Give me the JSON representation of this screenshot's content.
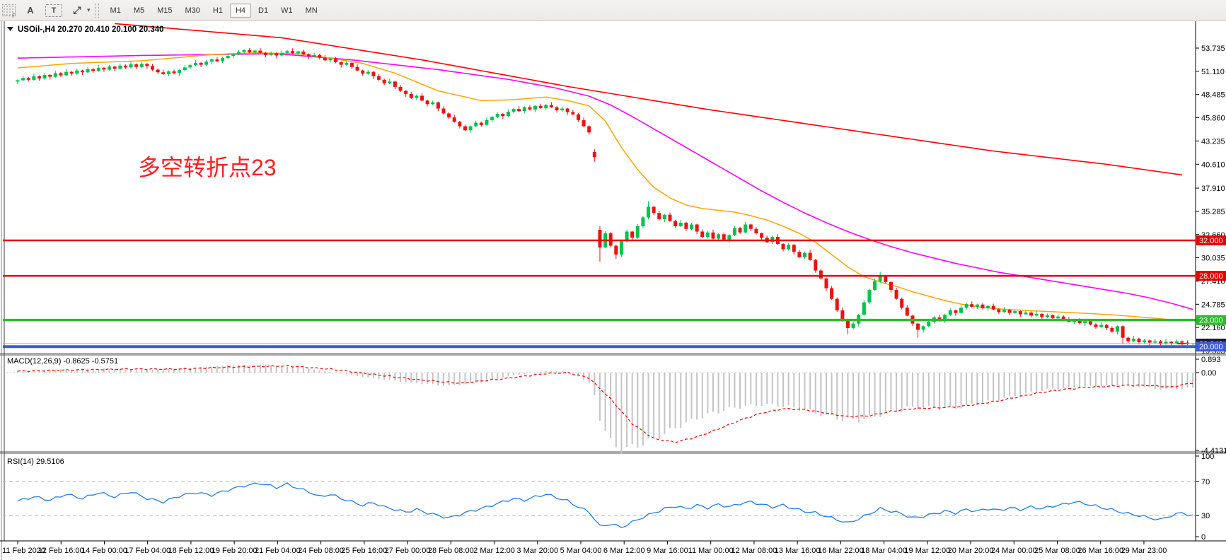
{
  "toolbar": {
    "icons": [
      {
        "name": "grip-f-icon",
        "glyph": "F"
      },
      {
        "name": "font-a-icon",
        "glyph": "A"
      },
      {
        "name": "text-label-icon",
        "glyph": "T"
      },
      {
        "name": "cursor-arrows-icon",
        "glyph": "⤢"
      },
      {
        "name": "dropdown-caret-icon",
        "glyph": "▾"
      }
    ],
    "timeframes": [
      "M1",
      "M5",
      "M15",
      "M30",
      "H1",
      "H4",
      "D1",
      "W1",
      "MN"
    ],
    "active_timeframe": "H4"
  },
  "chart_header": {
    "collapse_glyph": "▼",
    "symbol": "USOil-,H4",
    "ohlc": "20.270 20.410 20.100 20.340"
  },
  "annotation": {
    "text": "多空转折点23",
    "color": "#ff1f1f"
  },
  "price_axis": {
    "ticks": [
      "53.735",
      "51.110",
      "48.485",
      "45.860",
      "43.235",
      "40.610",
      "37.910",
      "35.285",
      "32.660",
      "30.035",
      "27.410",
      "24.785",
      "22.160",
      "19.535"
    ],
    "bid_label": "20.340"
  },
  "macd_pane": {
    "label": "MACD(12,26,9) -0.8625 -0.5751",
    "ticks": [
      "0.893",
      "0.00",
      "-4.4131"
    ]
  },
  "rsi_pane": {
    "label": "RSI(14) 29.5106",
    "ticks": [
      "100",
      "70",
      "30",
      "0"
    ]
  },
  "time_axis": {
    "labels": [
      "11 Feb 2020",
      "12 Feb 16:00",
      "14 Feb 00:00",
      "17 Feb 04:00",
      "18 Feb 12:00",
      "19 Feb 20:00",
      "21 Feb 04:00",
      "24 Feb 08:00",
      "25 Feb 16:00",
      "27 Feb 00:00",
      "28 Feb 08:00",
      "2 Mar 12:00",
      "3 Mar 20:00",
      "5 Mar 04:00",
      "6 Mar 12:00",
      "9 Mar 16:00",
      "11 Mar 00:00",
      "12 Mar 08:00",
      "13 Mar 16:00",
      "16 Mar 22:00",
      "18 Mar 04:00",
      "19 Mar 12:00",
      "20 Mar 20:00",
      "24 Mar 00:00",
      "25 Mar 08:00",
      "26 Mar 16:00",
      "29 Mar 23:00"
    ]
  },
  "chart_data": {
    "type": "candlestick+indicators",
    "symbol": "USOil",
    "timeframe": "H4",
    "last_bar_ohlc": [
      20.27,
      20.41,
      20.1,
      20.34
    ],
    "first_open": 49.95,
    "closes": [
      50.1,
      50.35,
      50.15,
      50.55,
      50.3,
      50.7,
      50.5,
      50.9,
      50.65,
      51.05,
      50.85,
      51.2,
      51.0,
      51.35,
      51.15,
      51.5,
      51.3,
      51.65,
      51.4,
      51.75,
      51.55,
      51.9,
      51.6,
      51.95,
      51.7,
      51.3,
      51.0,
      50.8,
      51.1,
      50.9,
      51.25,
      51.55,
      51.8,
      52.05,
      51.85,
      52.2,
      52.45,
      52.25,
      52.6,
      52.85,
      53.05,
      53.3,
      53.5,
      53.25,
      53.45,
      53.2,
      52.95,
      53.15,
      52.9,
      53.2,
      53.4,
      53.15,
      53.35,
      53.05,
      52.8,
      52.95,
      52.65,
      52.35,
      52.55,
      52.15,
      51.85,
      52.05,
      51.6,
      51.2,
      50.85,
      51.05,
      50.55,
      50.15,
      49.75,
      49.95,
      49.35,
      48.9,
      48.55,
      48.1,
      48.35,
      47.8,
      47.4,
      47.6,
      46.9,
      46.35,
      45.9,
      45.4,
      44.9,
      44.45,
      44.9,
      45.3,
      45.05,
      45.6,
      45.95,
      46.3,
      46.05,
      46.55,
      46.85,
      46.6,
      47.05,
      46.8,
      47.2,
      46.95,
      47.3,
      47.05,
      46.7,
      46.9,
      46.5,
      46.25,
      45.6,
      44.9,
      44.2,
      41.4,
      31.2,
      32.8,
      31.4,
      30.4,
      31.9,
      33.0,
      32.3,
      33.6,
      34.6,
      35.8,
      35.1,
      34.4,
      34.9,
      34.2,
      33.6,
      34.0,
      33.3,
      33.8,
      33.0,
      32.4,
      32.9,
      32.2,
      32.7,
      32.1,
      32.6,
      33.4,
      32.9,
      33.8,
      33.3,
      32.8,
      32.3,
      31.8,
      32.4,
      31.6,
      31.0,
      31.5,
      30.7,
      30.1,
      30.6,
      29.8,
      28.6,
      27.7,
      26.6,
      25.4,
      24.1,
      22.9,
      22.1,
      22.6,
      23.6,
      25.0,
      26.4,
      27.4,
      27.9,
      27.3,
      26.4,
      25.4,
      24.4,
      23.5,
      22.6,
      21.9,
      22.3,
      22.8,
      23.3,
      22.9,
      23.6,
      24.1,
      23.8,
      24.4,
      24.8,
      24.5,
      24.75,
      24.35,
      24.6,
      24.2,
      23.9,
      24.15,
      23.8,
      24.0,
      23.65,
      23.85,
      23.5,
      23.7,
      23.35,
      23.55,
      23.2,
      23.4,
      23.05,
      22.8,
      23.0,
      22.65,
      22.85,
      22.5,
      22.2,
      22.45,
      22.1,
      21.7,
      22.3,
      21.0,
      20.6,
      20.9,
      20.5,
      20.7,
      20.45,
      20.6,
      20.3,
      20.55,
      20.4,
      20.6,
      20.45,
      20.27,
      20.34
    ],
    "overrides": {
      "107": [
        42.0,
        42.3,
        40.9,
        41.4
      ],
      "108": [
        33.2,
        33.6,
        29.6,
        31.2
      ],
      "111": [
        31.4,
        31.5,
        29.9,
        30.4
      ],
      "117": [
        34.6,
        36.4,
        34.4,
        35.8
      ],
      "154": [
        22.9,
        23.0,
        21.4,
        22.1
      ],
      "160": [
        27.4,
        28.45,
        27.2,
        27.9
      ],
      "167": [
        22.6,
        22.7,
        21.0,
        21.9
      ],
      "205": [
        22.3,
        22.4,
        20.3,
        21.0
      ],
      "218": [
        20.27,
        20.41,
        20.1,
        20.34
      ]
    },
    "hlines": [
      {
        "price": 32.0,
        "label": "32.000",
        "color": "#e60000",
        "width": 2.5
      },
      {
        "price": 28.0,
        "label": "28.000",
        "color": "#e60000",
        "width": 2.5
      },
      {
        "price": 23.0,
        "label": "23.000",
        "color": "#2eb82e",
        "width": 3.5
      },
      {
        "price": 20.0,
        "label": "20.000",
        "color": "#3b5bdb",
        "width": 4
      }
    ],
    "bid_price": 20.34,
    "ma_red": [
      [
        18,
        56.5
      ],
      [
        49,
        54.9
      ],
      [
        75,
        52.4
      ],
      [
        102,
        49.4
      ],
      [
        128,
        46.8
      ],
      [
        155,
        44.4
      ],
      [
        181,
        42.1
      ],
      [
        202,
        40.6
      ],
      [
        216,
        39.4
      ]
    ],
    "ma_magenta": [
      [
        0,
        52.6
      ],
      [
        23,
        52.9
      ],
      [
        48,
        53.1
      ],
      [
        62,
        52.4
      ],
      [
        78,
        51.3
      ],
      [
        91,
        50.2
      ],
      [
        100,
        49.2
      ],
      [
        106,
        48.3
      ],
      [
        110,
        47.3
      ],
      [
        114,
        46.0
      ],
      [
        118,
        44.6
      ],
      [
        122,
        43.2
      ],
      [
        126,
        41.8
      ],
      [
        130,
        40.4
      ],
      [
        134,
        39.0
      ],
      [
        138,
        37.6
      ],
      [
        142,
        36.3
      ],
      [
        146,
        35.1
      ],
      [
        150,
        34.0
      ],
      [
        154,
        33.0
      ],
      [
        158,
        32.1
      ],
      [
        162,
        31.3
      ],
      [
        166,
        30.6
      ],
      [
        170,
        30.0
      ],
      [
        174,
        29.4
      ],
      [
        178,
        28.9
      ],
      [
        182,
        28.4
      ],
      [
        186,
        28.0
      ],
      [
        190,
        27.6
      ],
      [
        194,
        27.2
      ],
      [
        198,
        26.8
      ],
      [
        202,
        26.4
      ],
      [
        206,
        26.0
      ],
      [
        210,
        25.5
      ],
      [
        214,
        24.9
      ],
      [
        218,
        24.2
      ]
    ],
    "ma_orange": [
      [
        0,
        51.5
      ],
      [
        10,
        52.0
      ],
      [
        23,
        52.3
      ],
      [
        36,
        53.0
      ],
      [
        44,
        53.2
      ],
      [
        52,
        53.1
      ],
      [
        58,
        52.6
      ],
      [
        64,
        52.0
      ],
      [
        70,
        50.9
      ],
      [
        78,
        48.9
      ],
      [
        86,
        47.8
      ],
      [
        92,
        47.9
      ],
      [
        98,
        48.2
      ],
      [
        102,
        47.8
      ],
      [
        106,
        47.2
      ],
      [
        109,
        45.5
      ],
      [
        112,
        42.5
      ],
      [
        115,
        40.0
      ],
      [
        118,
        38.0
      ],
      [
        121,
        36.8
      ],
      [
        124,
        36.0
      ],
      [
        127,
        35.6
      ],
      [
        130,
        35.4
      ],
      [
        133,
        35.2
      ],
      [
        136,
        34.8
      ],
      [
        139,
        34.3
      ],
      [
        142,
        33.6
      ],
      [
        145,
        32.8
      ],
      [
        148,
        31.8
      ],
      [
        151,
        30.4
      ],
      [
        154,
        29.0
      ],
      [
        157,
        27.9
      ],
      [
        160,
        27.3
      ],
      [
        163,
        26.8
      ],
      [
        166,
        26.2
      ],
      [
        169,
        25.7
      ],
      [
        172,
        25.2
      ],
      [
        175,
        24.8
      ],
      [
        178,
        24.5
      ],
      [
        181,
        24.3
      ],
      [
        185,
        24.15
      ],
      [
        190,
        24.0
      ],
      [
        195,
        23.85
      ],
      [
        200,
        23.7
      ],
      [
        204,
        23.55
      ],
      [
        208,
        23.35
      ],
      [
        212,
        23.15
      ],
      [
        216,
        22.9
      ]
    ],
    "macd_main": [
      [
        0,
        0.1
      ],
      [
        8,
        0.18
      ],
      [
        16,
        0.22
      ],
      [
        24,
        0.15
      ],
      [
        32,
        0.28
      ],
      [
        40,
        0.42
      ],
      [
        46,
        0.45
      ],
      [
        52,
        0.3
      ],
      [
        58,
        0.05
      ],
      [
        64,
        -0.25
      ],
      [
        72,
        -0.55
      ],
      [
        80,
        -0.75
      ],
      [
        86,
        -0.55
      ],
      [
        92,
        -0.15
      ],
      [
        98,
        0.1
      ],
      [
        102,
        0.05
      ],
      [
        104,
        -0.2
      ],
      [
        106,
        -0.6
      ],
      [
        107,
        -1.3
      ],
      [
        108,
        -2.6
      ],
      [
        109,
        -3.3
      ],
      [
        110,
        -3.9
      ],
      [
        111,
        -4.2
      ],
      [
        112,
        -4.41
      ],
      [
        114,
        -4.25
      ],
      [
        117,
        -3.9
      ],
      [
        120,
        -3.45
      ],
      [
        123,
        -3.0
      ],
      [
        126,
        -2.6
      ],
      [
        129,
        -2.3
      ],
      [
        132,
        -2.05
      ],
      [
        135,
        -1.9
      ],
      [
        138,
        -1.82
      ],
      [
        141,
        -1.86
      ],
      [
        144,
        -2.0
      ],
      [
        147,
        -2.2
      ],
      [
        150,
        -2.45
      ],
      [
        153,
        -2.65
      ],
      [
        156,
        -2.7
      ],
      [
        159,
        -2.5
      ],
      [
        162,
        -2.2
      ],
      [
        165,
        -2.0
      ],
      [
        168,
        -1.95
      ],
      [
        171,
        -2.05
      ],
      [
        174,
        -2.0
      ],
      [
        177,
        -1.85
      ],
      [
        180,
        -1.65
      ],
      [
        183,
        -1.45
      ],
      [
        186,
        -1.25
      ],
      [
        189,
        -1.05
      ],
      [
        192,
        -0.92
      ],
      [
        195,
        -0.85
      ],
      [
        198,
        -0.8
      ],
      [
        201,
        -0.75
      ],
      [
        204,
        -0.72
      ],
      [
        207,
        -0.75
      ],
      [
        210,
        -0.88
      ],
      [
        213,
        -0.95
      ],
      [
        216,
        -0.9
      ],
      [
        218,
        -0.8625
      ]
    ],
    "macd_signal": [
      [
        0,
        0.08
      ],
      [
        10,
        0.15
      ],
      [
        20,
        0.2
      ],
      [
        30,
        0.2
      ],
      [
        40,
        0.32
      ],
      [
        50,
        0.38
      ],
      [
        58,
        0.2
      ],
      [
        66,
        -0.1
      ],
      [
        74,
        -0.4
      ],
      [
        82,
        -0.6
      ],
      [
        90,
        -0.35
      ],
      [
        98,
        -0.05
      ],
      [
        102,
        0.0
      ],
      [
        106,
        -0.3
      ],
      [
        110,
        -1.5
      ],
      [
        114,
        -2.9
      ],
      [
        118,
        -3.75
      ],
      [
        122,
        -3.95
      ],
      [
        126,
        -3.65
      ],
      [
        130,
        -3.2
      ],
      [
        134,
        -2.7
      ],
      [
        138,
        -2.3
      ],
      [
        142,
        -2.05
      ],
      [
        146,
        -2.1
      ],
      [
        150,
        -2.3
      ],
      [
        154,
        -2.5
      ],
      [
        158,
        -2.45
      ],
      [
        162,
        -2.2
      ],
      [
        166,
        -2.05
      ],
      [
        170,
        -2.0
      ],
      [
        174,
        -1.95
      ],
      [
        178,
        -1.8
      ],
      [
        182,
        -1.6
      ],
      [
        186,
        -1.35
      ],
      [
        190,
        -1.12
      ],
      [
        194,
        -0.95
      ],
      [
        198,
        -0.85
      ],
      [
        202,
        -0.78
      ],
      [
        206,
        -0.72
      ],
      [
        210,
        -0.73
      ],
      [
        214,
        -0.82
      ],
      [
        218,
        -0.5751
      ]
    ],
    "macd_values_text": {
      "main": -0.8625,
      "signal": -0.5751
    },
    "macd_range": [
      0.893,
      -4.4131
    ],
    "rsi": [
      [
        0,
        47
      ],
      [
        3,
        52
      ],
      [
        6,
        48
      ],
      [
        9,
        55
      ],
      [
        12,
        50
      ],
      [
        15,
        57
      ],
      [
        18,
        52
      ],
      [
        21,
        58
      ],
      [
        24,
        50
      ],
      [
        27,
        46
      ],
      [
        30,
        53
      ],
      [
        33,
        57
      ],
      [
        36,
        54
      ],
      [
        39,
        60
      ],
      [
        42,
        65
      ],
      [
        45,
        68
      ],
      [
        48,
        63
      ],
      [
        50,
        67
      ],
      [
        52,
        62
      ],
      [
        54,
        58
      ],
      [
        56,
        52
      ],
      [
        58,
        55
      ],
      [
        60,
        50
      ],
      [
        62,
        46
      ],
      [
        64,
        42
      ],
      [
        66,
        45
      ],
      [
        68,
        40
      ],
      [
        70,
        37
      ],
      [
        72,
        34
      ],
      [
        74,
        37
      ],
      [
        76,
        33
      ],
      [
        78,
        30
      ],
      [
        80,
        27
      ],
      [
        82,
        31
      ],
      [
        84,
        35
      ],
      [
        86,
        38
      ],
      [
        88,
        42
      ],
      [
        90,
        46
      ],
      [
        92,
        50
      ],
      [
        94,
        48
      ],
      [
        96,
        52
      ],
      [
        98,
        55
      ],
      [
        100,
        51
      ],
      [
        102,
        47
      ],
      [
        104,
        40
      ],
      [
        106,
        34
      ],
      [
        107,
        26
      ],
      [
        108,
        17
      ],
      [
        110,
        20
      ],
      [
        112,
        16
      ],
      [
        114,
        22
      ],
      [
        116,
        28
      ],
      [
        118,
        33
      ],
      [
        120,
        38
      ],
      [
        122,
        41
      ],
      [
        124,
        38
      ],
      [
        126,
        42
      ],
      [
        128,
        39
      ],
      [
        130,
        43
      ],
      [
        132,
        40
      ],
      [
        134,
        44
      ],
      [
        136,
        46
      ],
      [
        138,
        43
      ],
      [
        140,
        40
      ],
      [
        142,
        42
      ],
      [
        144,
        38
      ],
      [
        146,
        35
      ],
      [
        148,
        33
      ],
      [
        150,
        29
      ],
      [
        152,
        25
      ],
      [
        154,
        21
      ],
      [
        156,
        26
      ],
      [
        158,
        32
      ],
      [
        160,
        38
      ],
      [
        162,
        35
      ],
      [
        164,
        32
      ],
      [
        166,
        27
      ],
      [
        168,
        29
      ],
      [
        170,
        32
      ],
      [
        172,
        35
      ],
      [
        174,
        33
      ],
      [
        176,
        37
      ],
      [
        178,
        35
      ],
      [
        180,
        38
      ],
      [
        182,
        36
      ],
      [
        184,
        39
      ],
      [
        186,
        37
      ],
      [
        188,
        40
      ],
      [
        190,
        38
      ],
      [
        192,
        41
      ],
      [
        194,
        43
      ],
      [
        196,
        46
      ],
      [
        198,
        44
      ],
      [
        200,
        41
      ],
      [
        202,
        38
      ],
      [
        204,
        35
      ],
      [
        206,
        32
      ],
      [
        208,
        30
      ],
      [
        210,
        27
      ],
      [
        212,
        25
      ],
      [
        214,
        30
      ],
      [
        216,
        33
      ],
      [
        218,
        29.5
      ]
    ],
    "rsi_last": 29.5106,
    "rsi_levels": [
      70,
      30
    ],
    "colors": {
      "up": "#00c24e",
      "down": "#ef1010",
      "ma_red": "#ff0000",
      "ma_magenta": "#ff00ff",
      "ma_orange": "#ffa500",
      "macd_hist": "#c4c4c4",
      "macd_signal": "#ff0000",
      "rsi": "#1f7fe8"
    }
  }
}
